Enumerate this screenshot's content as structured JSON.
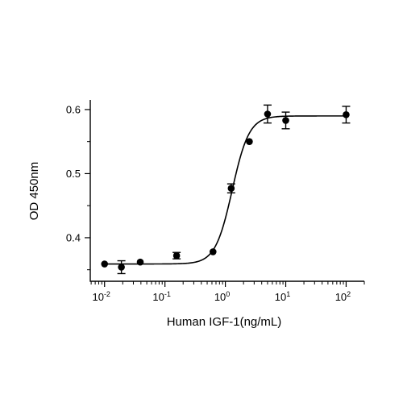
{
  "chart_data": {
    "type": "scatter",
    "title": "",
    "xlabel": "Human IGF-1(ng/mL)",
    "ylabel": "OD 450nm",
    "x_scale": "log",
    "xlim": [
      0.0058,
      200
    ],
    "ylim": [
      0.332,
      0.615
    ],
    "grid": false,
    "legend": "none",
    "x_ticks": [
      {
        "value": 0.01,
        "base": "10",
        "exp": "-2"
      },
      {
        "value": 0.1,
        "base": "10",
        "exp": "-1"
      },
      {
        "value": 1,
        "base": "10",
        "exp": "0"
      },
      {
        "value": 10,
        "base": "10",
        "exp": "1"
      },
      {
        "value": 100,
        "base": "10",
        "exp": "2"
      }
    ],
    "y_ticks": [
      {
        "value": 0.4,
        "label": "0.4"
      },
      {
        "value": 0.5,
        "label": "0.5"
      },
      {
        "value": 0.6,
        "label": "0.6"
      }
    ],
    "series": [
      {
        "points": [
          {
            "x": 0.01,
            "y": 0.359,
            "err": 0.0
          },
          {
            "x": 0.019,
            "y": 0.354,
            "err": 0.01
          },
          {
            "x": 0.039,
            "y": 0.362,
            "err": 0.0
          },
          {
            "x": 0.156,
            "y": 0.372,
            "err": 0.005
          },
          {
            "x": 0.625,
            "y": 0.378,
            "err": 0.0
          },
          {
            "x": 1.25,
            "y": 0.477,
            "err": 0.007
          },
          {
            "x": 2.5,
            "y": 0.55,
            "err": 0.0
          },
          {
            "x": 5,
            "y": 0.593,
            "err": 0.014
          },
          {
            "x": 10,
            "y": 0.583,
            "err": 0.013
          },
          {
            "x": 100,
            "y": 0.592,
            "err": 0.013
          }
        ],
        "fit": {
          "model": "4PL",
          "bottom": 0.359,
          "top": 0.59,
          "ec50": 1.3,
          "hill": 3.1
        },
        "color": "#000000"
      }
    ]
  }
}
